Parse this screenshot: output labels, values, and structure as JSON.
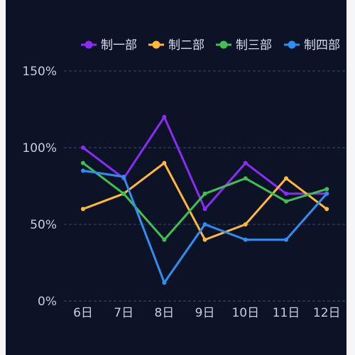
{
  "chart_data": {
    "type": "line",
    "categories": [
      "6日",
      "7日",
      "8日",
      "9日",
      "10日",
      "11日",
      "12日"
    ],
    "y_ticks": [
      "0%",
      "50%",
      "100%",
      "150%"
    ],
    "ylim": [
      0,
      150
    ],
    "grid": true,
    "legend_position": "top-right",
    "series": [
      {
        "name": "制一部",
        "color": "#8b2cf5",
        "values": [
          100,
          80,
          120,
          60,
          90,
          70,
          70
        ]
      },
      {
        "name": "制二部",
        "color": "#ffb936",
        "values": [
          60,
          70,
          90,
          40,
          50,
          80,
          60
        ]
      },
      {
        "name": "制三部",
        "color": "#3fc152",
        "values": [
          90,
          70,
          40,
          70,
          80,
          65,
          73
        ]
      },
      {
        "name": "制四部",
        "color": "#2e8ff0",
        "values": [
          85,
          81,
          12,
          50,
          40,
          40,
          70
        ]
      }
    ]
  },
  "colors": {
    "background": "#0d1326",
    "grid": "#3a4670",
    "axis_text": "#c7cde0"
  }
}
